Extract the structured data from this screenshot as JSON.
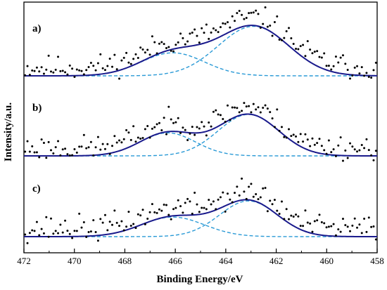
{
  "chart_data": {
    "type": "line",
    "xlabel": "Binding Energy/eV",
    "ylabel": "Intensity/a.u.",
    "xlim": [
      472,
      458
    ],
    "x_reversed": true,
    "x_ticks": [
      "472",
      "470",
      "468",
      "466",
      "464",
      "462",
      "460",
      "458"
    ],
    "panels": [
      {
        "label": "a)",
        "peaks": [
          {
            "center": 466.1,
            "sigma": 1.25,
            "height": 0.4
          },
          {
            "center": 462.9,
            "sigma": 1.4,
            "height": 0.86
          }
        ],
        "scatter_noise": 0.13,
        "scatter_seed": 11
      },
      {
        "label": "b)",
        "peaks": [
          {
            "center": 466.3,
            "sigma": 1.1,
            "height": 0.4
          },
          {
            "center": 463.1,
            "sigma": 1.2,
            "height": 0.72
          }
        ],
        "scatter_noise": 0.13,
        "scatter_seed": 23
      },
      {
        "label": "c)",
        "peaks": [
          {
            "center": 466.1,
            "sigma": 1.25,
            "height": 0.34
          },
          {
            "center": 463.1,
            "sigma": 1.15,
            "height": 0.62
          }
        ],
        "scatter_noise": 0.14,
        "scatter_seed": 37
      }
    ],
    "series": [
      {
        "kind": "scatter",
        "color": "#000000"
      },
      {
        "kind": "fit-envelope",
        "color": "#1a1a8c"
      },
      {
        "kind": "component",
        "color": "#2a9ad6",
        "dashed": true
      }
    ],
    "grid": false,
    "legend": "none"
  }
}
